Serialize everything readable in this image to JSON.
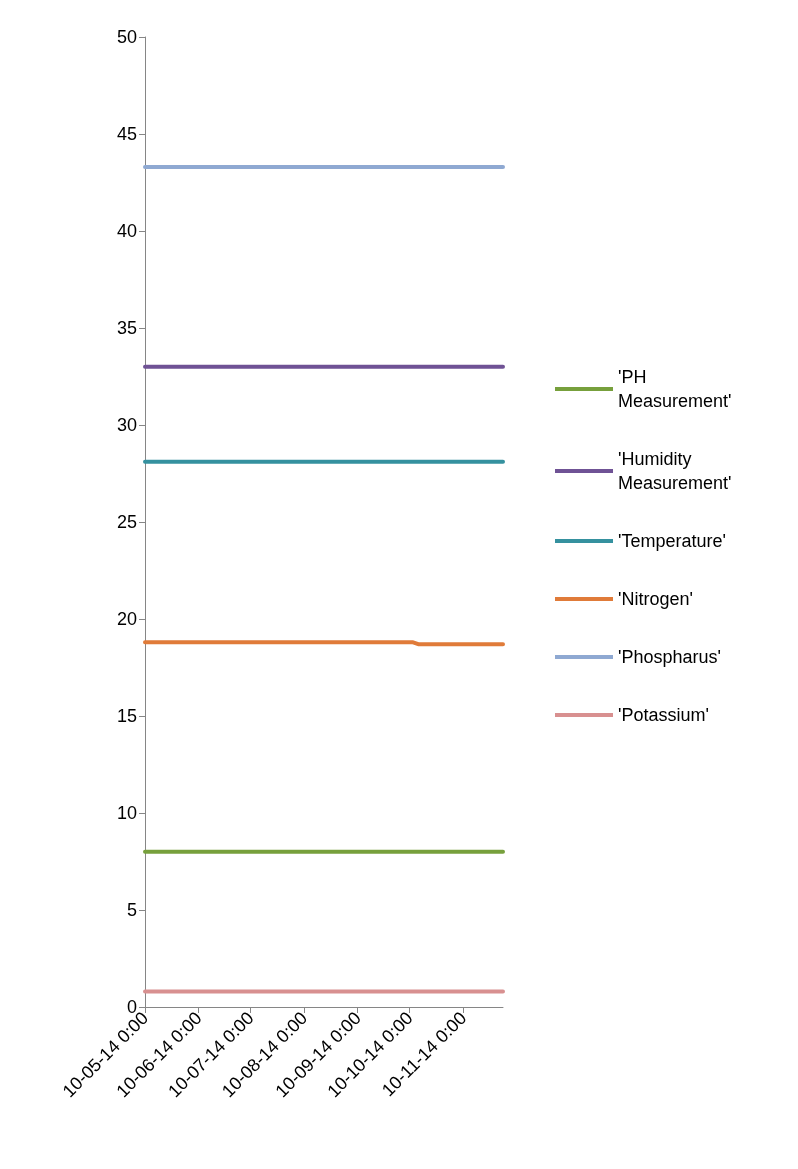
{
  "chart_data": {
    "type": "line",
    "xlim": [
      "2014-05-10",
      "2014-12-03"
    ],
    "xticks": [
      {
        "value": "2014-05-10",
        "label": "10-05-14 0:00"
      },
      {
        "value": "2014-06-10",
        "label": "10-06-14 0:00"
      },
      {
        "value": "2014-07-10",
        "label": "10-07-14 0:00"
      },
      {
        "value": "2014-08-10",
        "label": "10-08-14 0:00"
      },
      {
        "value": "2014-09-10",
        "label": "10-09-14 0:00"
      },
      {
        "value": "2014-10-10",
        "label": "10-10-14 0:00"
      },
      {
        "value": "2014-11-10",
        "label": "10-11-14 0:00"
      }
    ],
    "ylim": [
      0,
      50
    ],
    "yticks": [
      0,
      5,
      10,
      15,
      20,
      25,
      30,
      35,
      40,
      45,
      50
    ],
    "grid": false,
    "legend": "right",
    "marker": "none",
    "line_style": "solid",
    "series": [
      {
        "name": "'PH Measurement'",
        "color": "#77a03c",
        "x": [
          "2014-05-10",
          "2014-12-03"
        ],
        "values": [
          8.0,
          8.0
        ]
      },
      {
        "name": "'Humidity Measurement'",
        "color": "#6f5295",
        "x": [
          "2014-05-10",
          "2014-12-03"
        ],
        "values": [
          33.0,
          33.0
        ]
      },
      {
        "name": "'Temperature'",
        "color": "#35919f",
        "x": [
          "2014-05-10",
          "2014-12-03"
        ],
        "values": [
          28.1,
          28.1
        ]
      },
      {
        "name": "'Nitrogen'",
        "color": "#e07b39",
        "x": [
          "2014-05-10",
          "2014-10-12",
          "2014-10-15",
          "2014-12-03"
        ],
        "values": [
          18.8,
          18.8,
          18.7,
          18.7
        ]
      },
      {
        "name": "'Phospharus'",
        "color": "#8fa9d2",
        "x": [
          "2014-05-10",
          "2014-12-03"
        ],
        "values": [
          43.3,
          43.3
        ]
      },
      {
        "name": "'Potassium'",
        "color": "#d89090",
        "x": [
          "2014-05-10",
          "2014-12-03"
        ],
        "values": [
          0.8,
          0.8
        ]
      }
    ]
  }
}
